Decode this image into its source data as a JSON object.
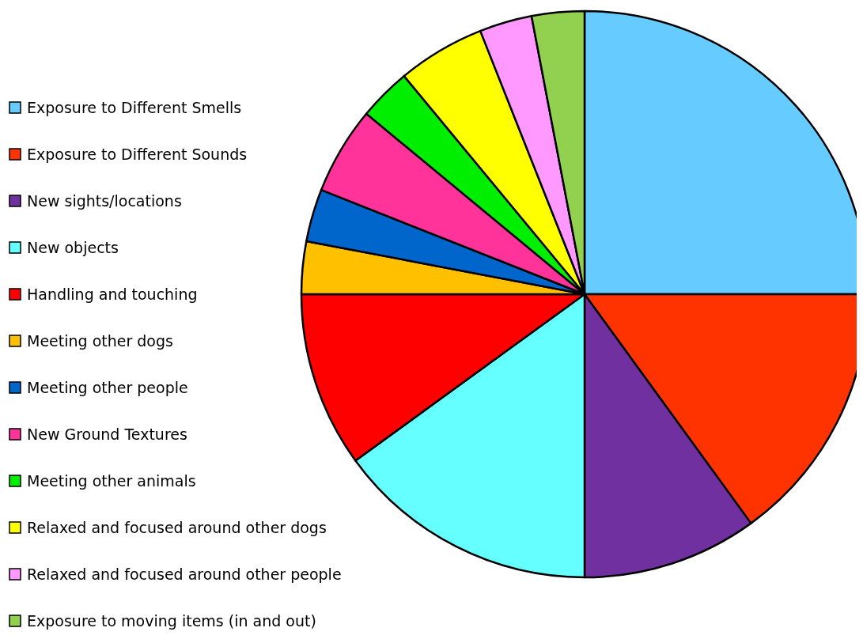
{
  "chart_data": {
    "type": "pie",
    "legend": "left",
    "categories": [
      "Exposure to Different Smells",
      "Exposure to Different Sounds",
      "New sights/locations",
      "New objects",
      "Handling and touching",
      "Meeting other dogs",
      "Meeting other people",
      "New Ground Textures",
      "Meeting other animals",
      "Relaxed and focused around other dogs",
      "Relaxed and focused around other people",
      "Exposure to moving items (in and out)"
    ],
    "values": [
      25,
      15,
      10,
      15,
      10,
      3,
      3,
      5,
      3,
      5,
      3,
      3
    ],
    "colors": [
      "#66ccff",
      "#ff3300",
      "#7030a0",
      "#66ffff",
      "#ff0000",
      "#ffc000",
      "#0066cc",
      "#ff3399",
      "#00ee00",
      "#ffff00",
      "#ff99ff",
      "#92d050"
    ]
  }
}
